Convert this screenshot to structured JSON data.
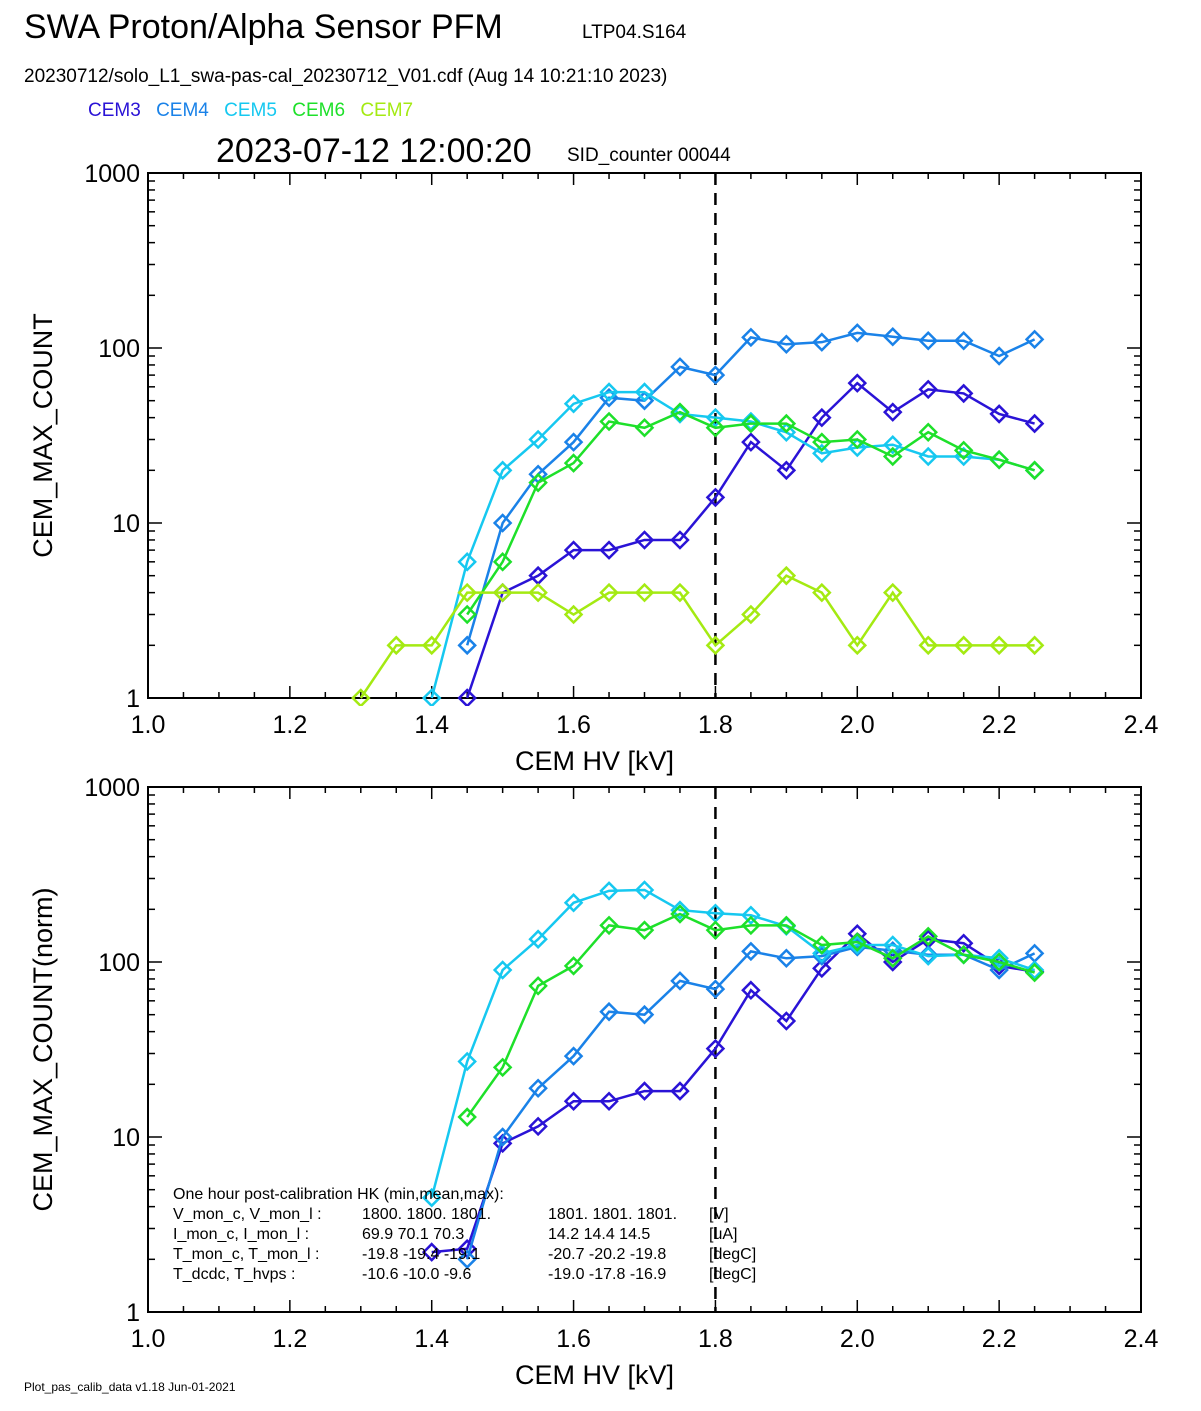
{
  "header": {
    "title": "SWA Proton/Alpha Sensor PFM",
    "tag": "LTP04.S164",
    "file": "20230712/solo_L1_swa-pas-cal_20230712_V01.cdf  (Aug 14 10:21:10 2023)",
    "datetime": "2023-07-12 12:00:20",
    "sid": "SID_counter 00044"
  },
  "legend": [
    {
      "name": "CEM3",
      "color": "#2a13d6"
    },
    {
      "name": "CEM4",
      "color": "#1a82e8"
    },
    {
      "name": "CEM5",
      "color": "#16c8f0"
    },
    {
      "name": "CEM6",
      "color": "#1ee02a"
    },
    {
      "name": "CEM7",
      "color": "#a4ea12"
    }
  ],
  "footer": "Plot_pas_calib_data v1.18 Jun-01-2021",
  "chart_data": [
    {
      "type": "line",
      "xlabel": "CEM HV [kV]",
      "ylabel": "CEM_MAX_COUNT",
      "xlim": [
        1.0,
        2.4
      ],
      "ylim": [
        1,
        1000
      ],
      "yscale": "log",
      "x_ticks": [
        "1.0",
        "1.2",
        "1.4",
        "1.6",
        "1.8",
        "2.0",
        "2.2",
        "2.4"
      ],
      "y_ticks": [
        "1",
        "10",
        "100",
        "1000"
      ],
      "vline_x": 1.8,
      "series": [
        {
          "name": "CEM3",
          "color": "#2a13d6",
          "x": [
            1.45,
            1.5,
            1.55,
            1.6,
            1.65,
            1.7,
            1.75,
            1.8,
            1.85,
            1.9,
            1.95,
            2.0,
            2.05,
            2.1,
            2.15,
            2.2,
            2.25
          ],
          "values": [
            1,
            4,
            5,
            7,
            7,
            8,
            8,
            14,
            29,
            20,
            40,
            63,
            43,
            58,
            55,
            42,
            37
          ]
        },
        {
          "name": "CEM4",
          "color": "#1a82e8",
          "x": [
            1.45,
            1.5,
            1.55,
            1.6,
            1.65,
            1.7,
            1.75,
            1.8,
            1.85,
            1.9,
            1.95,
            2.0,
            2.05,
            2.1,
            2.15,
            2.2,
            2.25
          ],
          "values": [
            2,
            10,
            19,
            29,
            52,
            50,
            78,
            70,
            115,
            105,
            108,
            122,
            116,
            110,
            110,
            90,
            112
          ]
        },
        {
          "name": "CEM5",
          "color": "#16c8f0",
          "x": [
            1.4,
            1.45,
            1.5,
            1.55,
            1.6,
            1.65,
            1.7,
            1.75,
            1.8,
            1.85,
            1.9,
            1.95,
            2.0,
            2.05,
            2.1,
            2.15,
            2.2,
            2.25
          ],
          "values": [
            1,
            6,
            20,
            30,
            48,
            56,
            56,
            42,
            40,
            38,
            33,
            25,
            27,
            28,
            24,
            24,
            23,
            20
          ]
        },
        {
          "name": "CEM6",
          "color": "#1ee02a",
          "x": [
            1.45,
            1.5,
            1.55,
            1.6,
            1.65,
            1.7,
            1.75,
            1.8,
            1.85,
            1.9,
            1.95,
            2.0,
            2.05,
            2.1,
            2.15,
            2.2,
            2.25
          ],
          "values": [
            3,
            6,
            17,
            22,
            38,
            35,
            43,
            35,
            37,
            37,
            29,
            30,
            24,
            33,
            26,
            23,
            20
          ]
        },
        {
          "name": "CEM7",
          "color": "#a4ea12",
          "x": [
            1.3,
            1.35,
            1.4,
            1.45,
            1.5,
            1.55,
            1.6,
            1.65,
            1.7,
            1.75,
            1.8,
            1.85,
            1.9,
            1.95,
            2.0,
            2.05,
            2.1,
            2.15,
            2.2,
            2.25
          ],
          "values": [
            1,
            2,
            2,
            4,
            4,
            4,
            3,
            4,
            4,
            4,
            2,
            3,
            5,
            4,
            2,
            4,
            2,
            2,
            2,
            2
          ]
        }
      ]
    },
    {
      "type": "line",
      "xlabel": "CEM HV [kV]",
      "ylabel": "CEM_MAX_COUNT(norm)",
      "xlim": [
        1.0,
        2.4
      ],
      "ylim": [
        1,
        1000
      ],
      "yscale": "log",
      "x_ticks": [
        "1.0",
        "1.2",
        "1.4",
        "1.6",
        "1.8",
        "2.0",
        "2.2",
        "2.4"
      ],
      "y_ticks": [
        "1",
        "10",
        "100",
        "1000"
      ],
      "vline_x": 1.8,
      "series": [
        {
          "name": "CEM3",
          "color": "#2a13d6",
          "x": [
            1.4,
            1.45,
            1.5,
            1.55,
            1.6,
            1.65,
            1.7,
            1.75,
            1.8,
            1.85,
            1.9,
            1.95,
            2.0,
            2.05,
            2.1,
            2.15,
            2.2,
            2.25
          ],
          "values": [
            2.2,
            2.3,
            9.2,
            11.5,
            16,
            16,
            18.3,
            18.3,
            32,
            69,
            46,
            92,
            145,
            100,
            135,
            128,
            95,
            88
          ]
        },
        {
          "name": "CEM4",
          "color": "#1a82e8",
          "x": [
            1.45,
            1.5,
            1.55,
            1.6,
            1.65,
            1.7,
            1.75,
            1.8,
            1.85,
            1.9,
            1.95,
            2.0,
            2.05,
            2.1,
            2.15,
            2.2,
            2.25
          ],
          "values": [
            2,
            10,
            19,
            29,
            52,
            50,
            78,
            70,
            115,
            105,
            108,
            122,
            116,
            110,
            110,
            90,
            112
          ]
        },
        {
          "name": "CEM5",
          "color": "#16c8f0",
          "x": [
            1.4,
            1.45,
            1.5,
            1.55,
            1.6,
            1.65,
            1.7,
            1.75,
            1.8,
            1.85,
            1.9,
            1.95,
            2.0,
            2.05,
            2.1,
            2.15,
            2.2,
            2.25
          ],
          "values": [
            4.5,
            27,
            90,
            135,
            218,
            255,
            258,
            198,
            190,
            185,
            160,
            112,
            125,
            125,
            108,
            110,
            105,
            90
          ]
        },
        {
          "name": "CEM6",
          "color": "#1ee02a",
          "x": [
            1.45,
            1.5,
            1.55,
            1.6,
            1.65,
            1.7,
            1.75,
            1.8,
            1.85,
            1.9,
            1.95,
            2.0,
            2.05,
            2.1,
            2.15,
            2.2,
            2.25
          ],
          "values": [
            13,
            25,
            73,
            95,
            162,
            152,
            188,
            152,
            162,
            162,
            125,
            130,
            105,
            140,
            110,
            100,
            87
          ]
        }
      ],
      "annotation": {
        "heading": "One hour post-calibration HK (min,mean,max):",
        "rows": [
          {
            "label": "V_mon_c, V_mon_l :",
            "a": "1800.  1800.  1801.",
            "b": "1801.  1801.  1801.",
            "unit": "[V]"
          },
          {
            "label": "I_mon_c, I_mon_l :",
            "a": "69.9   70.1   70.3",
            "b": "14.2   14.4   14.5",
            "unit": "[uA]"
          },
          {
            "label": "T_mon_c, T_mon_l :",
            "a": "-19.8  -19.4  -19.1",
            "b": "-20.7  -20.2  -19.8",
            "unit": "[degC]"
          },
          {
            "label": "T_dcdc,    T_hvps :",
            "a": "-10.6  -10.0   -9.6",
            "b": "-19.0  -17.8  -16.9",
            "unit": "[degC]"
          }
        ]
      }
    }
  ]
}
